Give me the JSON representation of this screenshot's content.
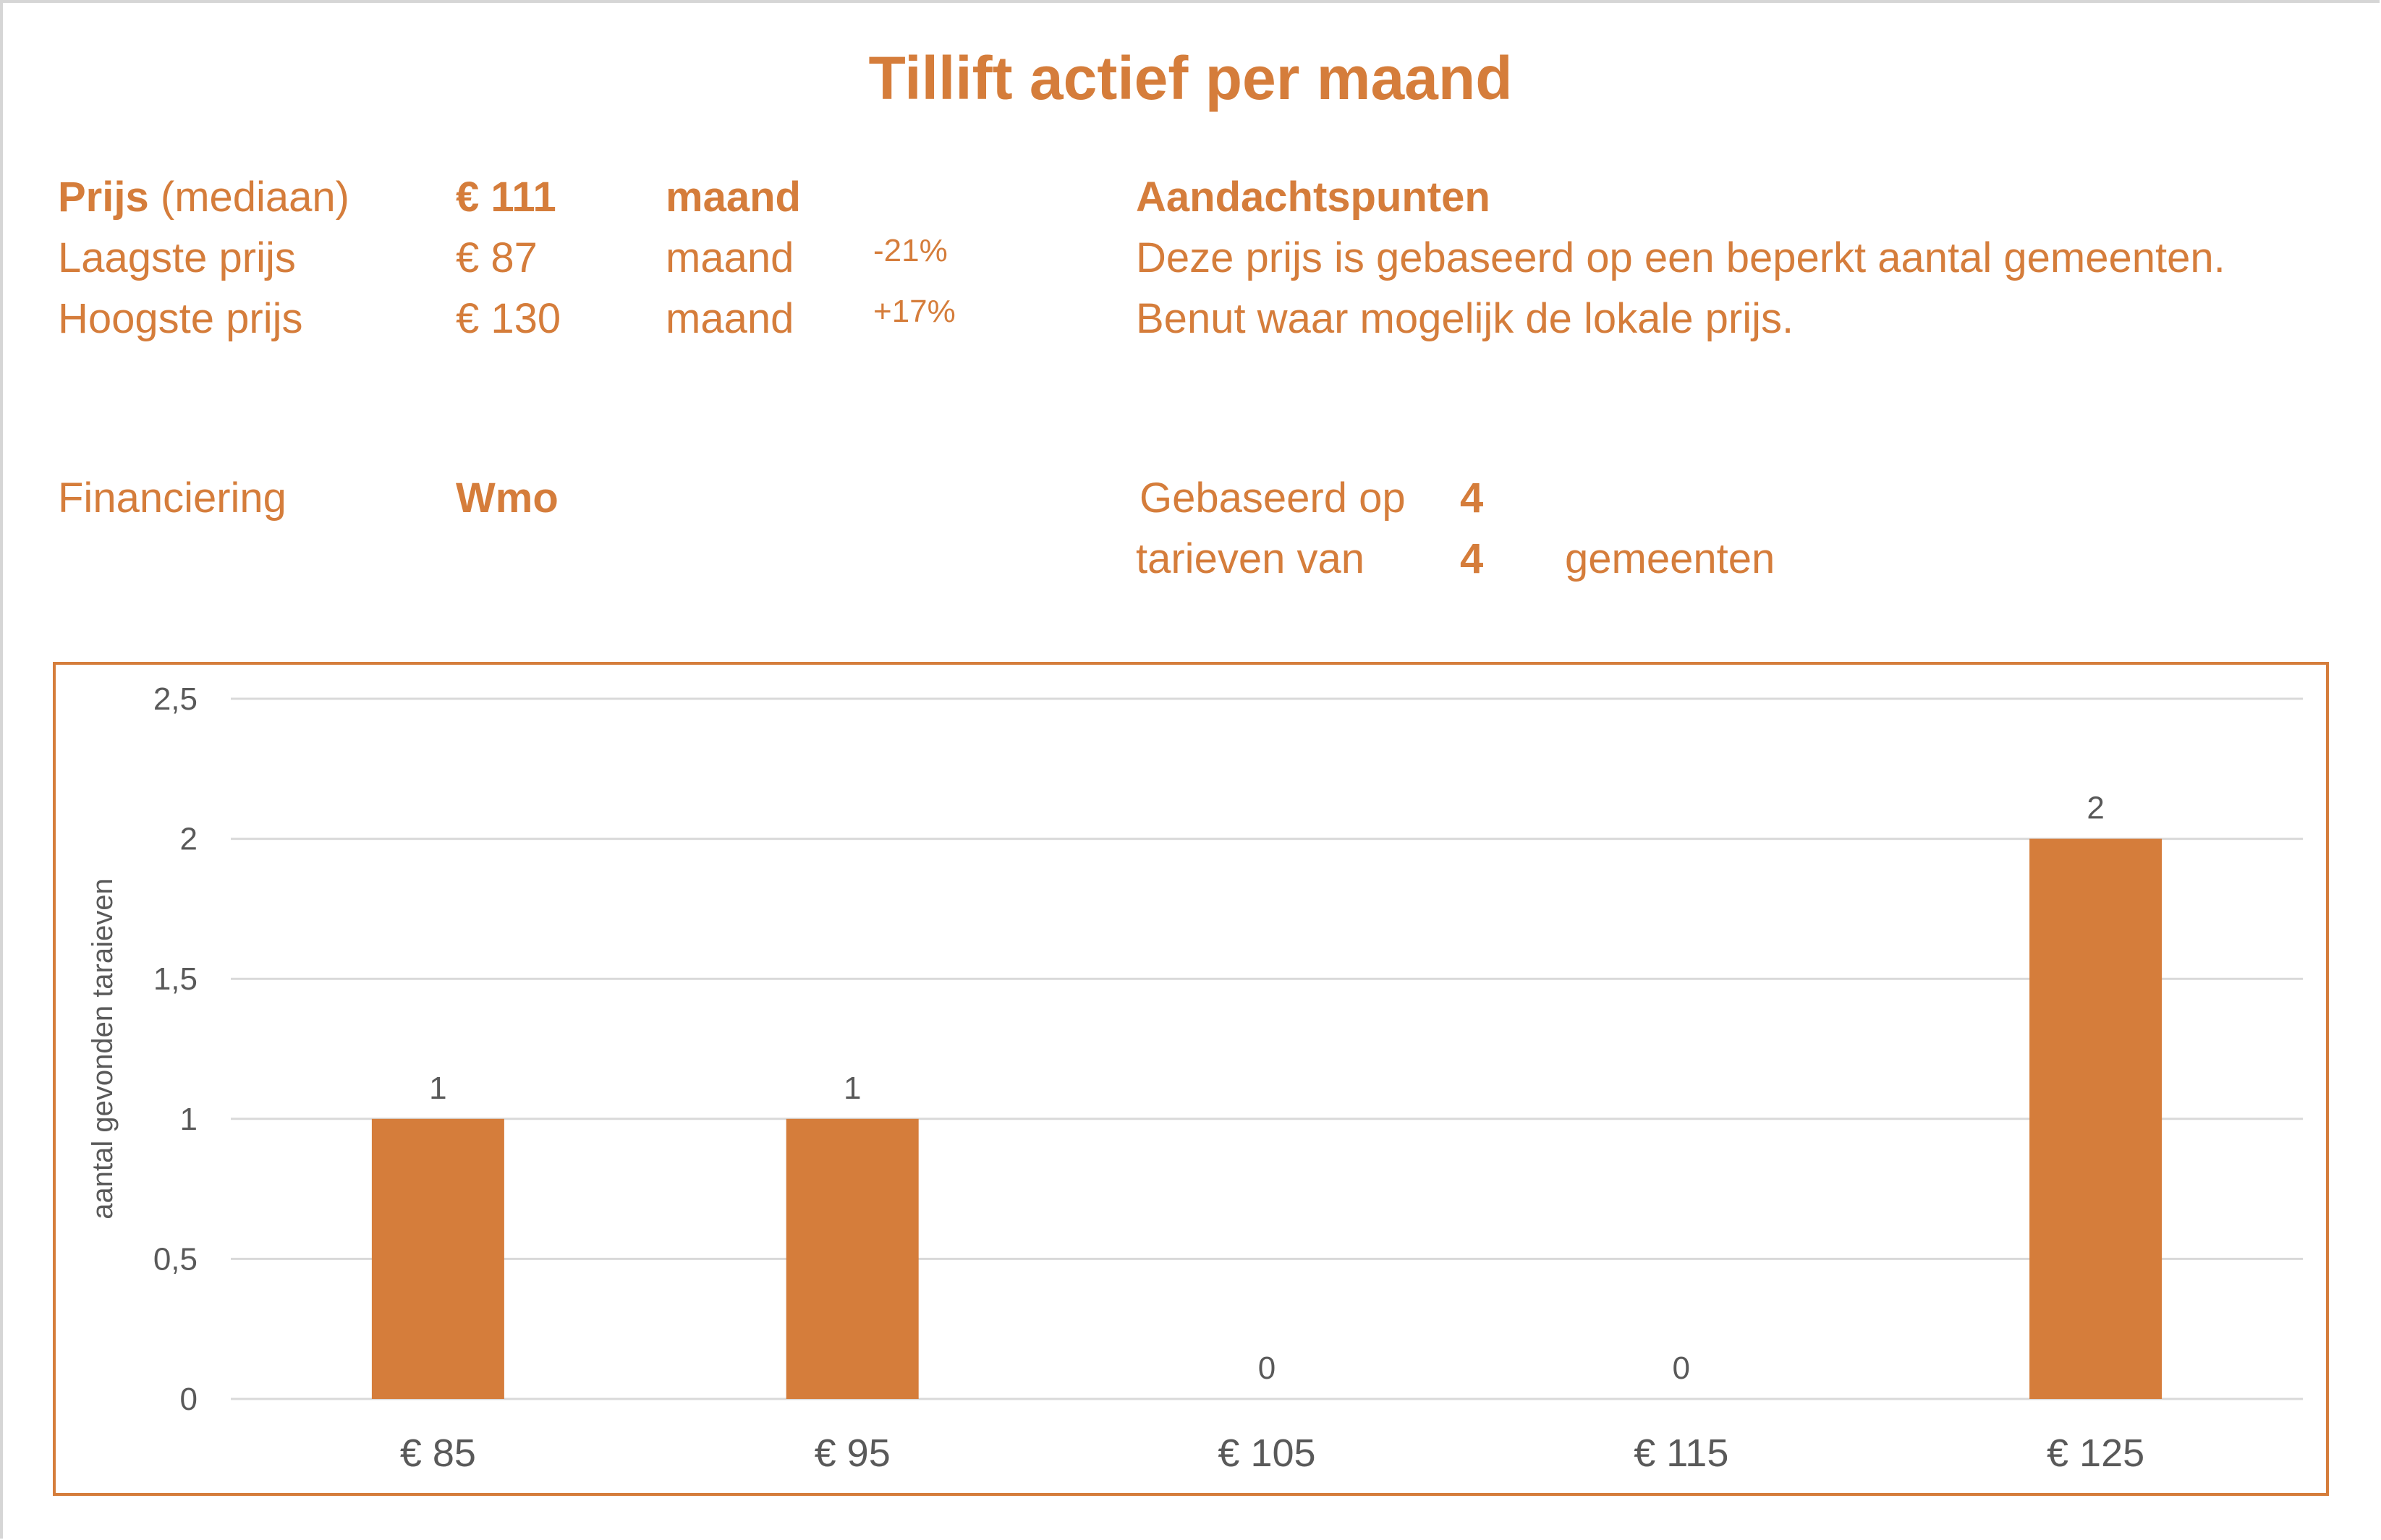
{
  "title": "Tillift actief per maand",
  "prices": {
    "median": {
      "label_bold": "Prijs",
      "label_rest": "(mediaan)",
      "value": "€ 111",
      "unit": "maand"
    },
    "lowest": {
      "label": "Laagste prijs",
      "value": "€ 87",
      "unit": "maand",
      "diff": "-21%"
    },
    "highest": {
      "label": "Hoogste prijs",
      "value": "€ 130",
      "unit": "maand",
      "diff": "+17%"
    }
  },
  "notes": {
    "heading": "Aandachtspunten",
    "lines": [
      "Deze prijs is gebaseerd op een beperkt aantal gemeenten.",
      "Benut waar mogelijk de lokale prijs."
    ]
  },
  "financing": {
    "label": "Financiering",
    "value": "Wmo"
  },
  "basis": {
    "line1_label": "Gebaseerd op",
    "line1_value": "4",
    "line2_label": "tarieven van",
    "line2_value": "4",
    "line2_suffix": "gemeenten"
  },
  "colors": {
    "accent": "#D57D3B",
    "text_gray": "#595959",
    "grid": "#d9d9d9"
  },
  "chart_data": {
    "type": "bar",
    "categories": [
      "€ 85",
      "€ 95",
      "€ 105",
      "€ 115",
      "€ 125"
    ],
    "values": [
      1,
      1,
      0,
      0,
      2
    ],
    "data_labels": [
      "1",
      "1",
      "0",
      "0",
      "2"
    ],
    "xlabel": "",
    "ylabel": "aantal gevonden taraieven",
    "ylim": [
      0,
      2.5
    ],
    "yticks": [
      "0",
      "0,5",
      "1",
      "1,5",
      "2",
      "2,5"
    ],
    "grid": true,
    "legend": "none"
  }
}
